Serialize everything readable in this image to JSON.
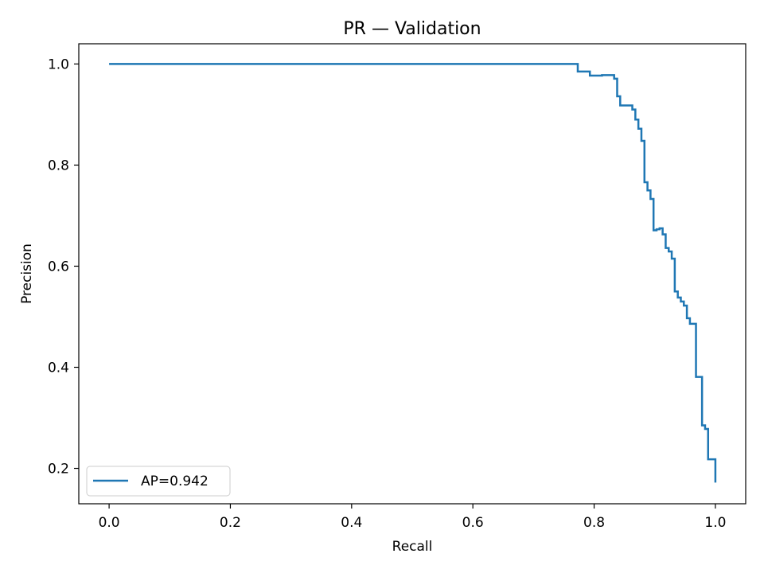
{
  "chart_data": {
    "type": "line",
    "title": "PR — Validation",
    "xlabel": "Recall",
    "ylabel": "Precision",
    "xlim": [
      -0.05,
      1.05
    ],
    "ylim": [
      0.13,
      1.04
    ],
    "xticks": [
      0.0,
      0.2,
      0.4,
      0.6,
      0.8,
      1.0
    ],
    "xtick_labels": [
      "0.0",
      "0.2",
      "0.4",
      "0.6",
      "0.8",
      "1.0"
    ],
    "yticks": [
      0.2,
      0.4,
      0.6,
      0.8,
      1.0
    ],
    "ytick_labels": [
      "0.2",
      "0.4",
      "0.6",
      "0.8",
      "1.0"
    ],
    "grid": false,
    "legend_position": "lower-left",
    "series": [
      {
        "name": "AP=0.942",
        "color": "#1f77b4",
        "step": "post",
        "x": [
          0.0,
          0.773,
          0.793,
          0.813,
          0.833,
          0.838,
          0.843,
          0.853,
          0.863,
          0.868,
          0.873,
          0.878,
          0.883,
          0.888,
          0.893,
          0.898,
          0.903,
          0.908,
          0.913,
          0.918,
          0.923,
          0.928,
          0.933,
          0.938,
          0.943,
          0.948,
          0.953,
          0.958,
          0.963,
          0.968,
          0.973,
          0.978,
          0.983,
          0.988,
          0.993,
          1.0
        ],
        "y": [
          1.0,
          0.985,
          0.977,
          0.978,
          0.971,
          0.936,
          0.918,
          0.918,
          0.91,
          0.89,
          0.872,
          0.848,
          0.766,
          0.75,
          0.733,
          0.671,
          0.673,
          0.675,
          0.663,
          0.636,
          0.629,
          0.615,
          0.55,
          0.538,
          0.53,
          0.522,
          0.497,
          0.486,
          0.486,
          0.381,
          0.381,
          0.285,
          0.278,
          0.218,
          0.218,
          0.172
        ]
      }
    ]
  }
}
